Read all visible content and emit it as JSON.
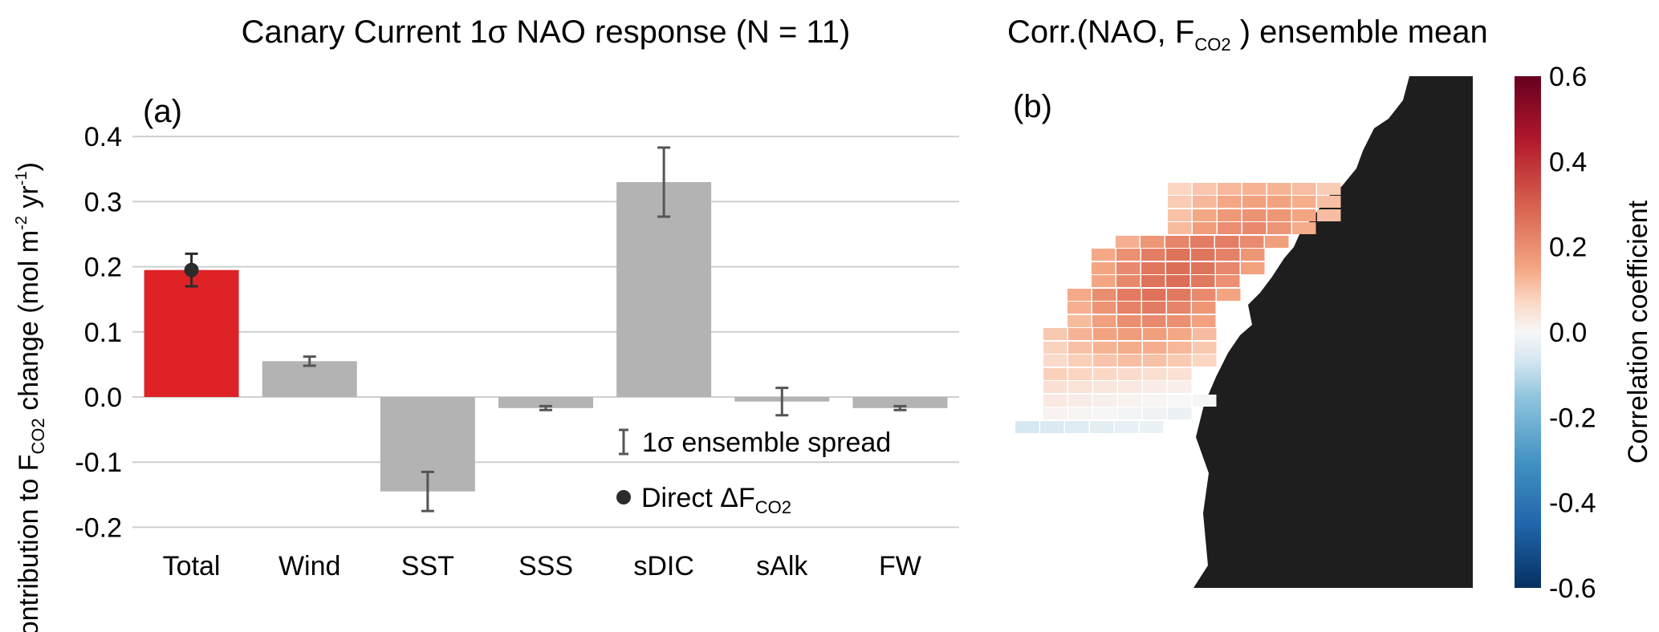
{
  "chart_data": [
    {
      "type": "bar",
      "panel": "(a)",
      "title": "Canary Current 1σ NAO response (N = 11)",
      "ylabel": {
        "prefix": "Contribution to F",
        "subscript": "CO2",
        "suffix": " change (mol m",
        "sup1": "-2",
        "mid": " yr",
        "sup2": "-1",
        "end": ")"
      },
      "ylim": [
        -0.22,
        0.42
      ],
      "yticks": [
        "0.4",
        "0.3",
        "0.2",
        "0.1",
        "0.0",
        "-0.1",
        "-0.2"
      ],
      "ytick_values": [
        0.4,
        0.3,
        0.2,
        0.1,
        0.0,
        -0.1,
        -0.2
      ],
      "grid": true,
      "categories": [
        "Total",
        "Wind",
        "SST",
        "SSS",
        "sDIC",
        "sAlk",
        "FW"
      ],
      "values": [
        0.195,
        0.055,
        -0.145,
        -0.017,
        0.33,
        -0.007,
        -0.017
      ],
      "error": [
        0.025,
        0.007,
        0.03,
        0.003,
        0.053,
        0.021,
        0.003
      ],
      "bar_colors": [
        "#de2326",
        "#b3b3b3",
        "#b3b3b3",
        "#b3b3b3",
        "#b3b3b3",
        "#b3b3b3",
        "#b3b3b3"
      ],
      "direct_point": {
        "category": "Total",
        "value": 0.195,
        "error": 0.025
      },
      "legend": {
        "placement": "lower-right",
        "errorbar_label": "1σ ensemble spread",
        "point_label_prefix": "Direct ΔF",
        "point_label_sub": "CO2"
      }
    },
    {
      "type": "heatmap",
      "panel": "(b)",
      "title": {
        "prefix": "Corr.(NAO, F",
        "subscript": "CO2",
        "suffix": " ) ensemble mean"
      },
      "colorbar": {
        "label": "Correlation coefficient",
        "range": [
          -0.6,
          0.6
        ],
        "ticks": [
          "0.6",
          "0.4",
          "0.2",
          "0.0",
          "-0.2",
          "-0.4",
          "-0.6"
        ],
        "tick_values": [
          0.6,
          0.4,
          0.2,
          0.0,
          -0.2,
          -0.4,
          -0.6
        ],
        "colormap": "RdBu_r"
      },
      "land_color": "#1e1e1e"
    }
  ]
}
